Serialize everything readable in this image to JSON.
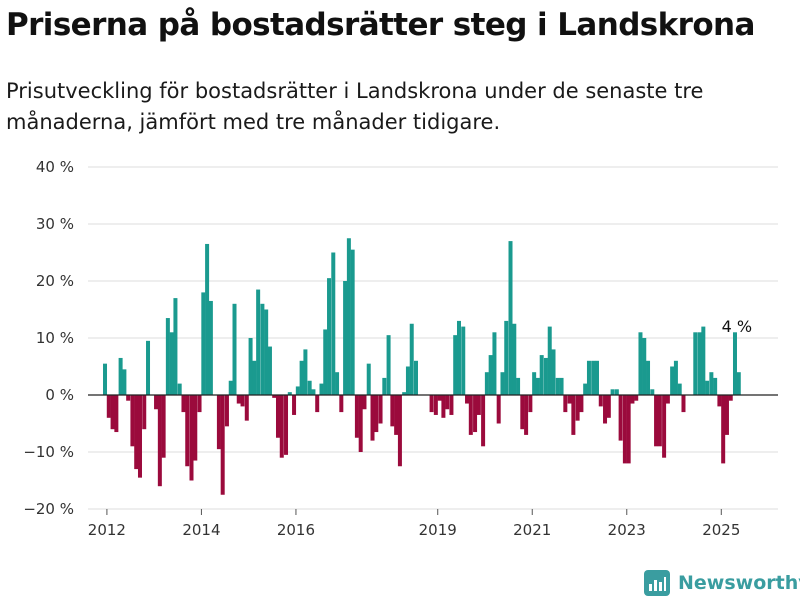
{
  "title": "Priserna på bostadsrätter steg i Landskrona",
  "subtitle": "Prisutveckling för bostadsrätter i Landskrona under de senaste tre månaderna, jämfört med tre månader tidigare.",
  "brand": "Newsworthy",
  "colors": {
    "positive": "#1a9a8f",
    "negative": "#9b0a3c",
    "grid": "#dedede",
    "zero_line": "#222222",
    "brand": "#3a9da0"
  },
  "chart_data": {
    "type": "bar",
    "ylim": [
      -20,
      40
    ],
    "y_ticks": [
      {
        "value": 40,
        "label": "40 %"
      },
      {
        "value": 30,
        "label": "30 %"
      },
      {
        "value": 20,
        "label": "20 %"
      },
      {
        "value": 10,
        "label": "10 %"
      },
      {
        "value": 0,
        "label": "0 %"
      },
      {
        "value": -10,
        "label": "−10 %"
      },
      {
        "value": -20,
        "label": "−20 %"
      }
    ],
    "x_ticks": [
      {
        "value": 2012.0,
        "label": "2012"
      },
      {
        "value": 2014.0,
        "label": "2014"
      },
      {
        "value": 2016.0,
        "label": "2016"
      },
      {
        "value": 2019.0,
        "label": "2019"
      },
      {
        "value": 2021.0,
        "label": "2021"
      },
      {
        "value": 2023.0,
        "label": "2023"
      },
      {
        "value": 2025.0,
        "label": "2025"
      }
    ],
    "xlim": [
      2011.6,
      2026.2
    ],
    "grid": true,
    "last_label": "4 %",
    "points": [
      [
        2011.96,
        5.5
      ],
      [
        2012.04,
        -4
      ],
      [
        2012.12,
        -6
      ],
      [
        2012.2,
        -6.5
      ],
      [
        2012.29,
        6.5
      ],
      [
        2012.37,
        4.5
      ],
      [
        2012.45,
        -1
      ],
      [
        2012.54,
        -9
      ],
      [
        2012.62,
        -13
      ],
      [
        2012.7,
        -14.5
      ],
      [
        2012.79,
        -6
      ],
      [
        2012.87,
        9.5
      ],
      [
        2013.04,
        -2.5
      ],
      [
        2013.12,
        -16
      ],
      [
        2013.2,
        -11
      ],
      [
        2013.29,
        13.5
      ],
      [
        2013.37,
        11
      ],
      [
        2013.45,
        17
      ],
      [
        2013.54,
        2
      ],
      [
        2013.62,
        -3
      ],
      [
        2013.7,
        -12.5
      ],
      [
        2013.79,
        -15
      ],
      [
        2013.87,
        -11.5
      ],
      [
        2013.96,
        -3
      ],
      [
        2014.04,
        18
      ],
      [
        2014.12,
        26.5
      ],
      [
        2014.2,
        16.5
      ],
      [
        2014.37,
        -9.5
      ],
      [
        2014.45,
        -17.5
      ],
      [
        2014.54,
        -5.5
      ],
      [
        2014.62,
        2.5
      ],
      [
        2014.7,
        16
      ],
      [
        2014.79,
        -1.5
      ],
      [
        2014.87,
        -2
      ],
      [
        2014.96,
        -4.5
      ],
      [
        2015.04,
        10
      ],
      [
        2015.12,
        6
      ],
      [
        2015.2,
        18.5
      ],
      [
        2015.29,
        16
      ],
      [
        2015.37,
        15
      ],
      [
        2015.45,
        8.5
      ],
      [
        2015.54,
        -0.5
      ],
      [
        2015.62,
        -7.5
      ],
      [
        2015.7,
        -11
      ],
      [
        2015.79,
        -10.5
      ],
      [
        2015.87,
        0.5
      ],
      [
        2015.96,
        -3.5
      ],
      [
        2016.04,
        1.5
      ],
      [
        2016.12,
        6
      ],
      [
        2016.2,
        8
      ],
      [
        2016.29,
        2.5
      ],
      [
        2016.37,
        1
      ],
      [
        2016.45,
        -3
      ],
      [
        2016.54,
        2
      ],
      [
        2016.62,
        11.5
      ],
      [
        2016.7,
        20.5
      ],
      [
        2016.79,
        25
      ],
      [
        2016.87,
        4
      ],
      [
        2016.96,
        -3
      ],
      [
        2017.04,
        20
      ],
      [
        2017.12,
        27.5
      ],
      [
        2017.2,
        25.5
      ],
      [
        2017.29,
        -7.5
      ],
      [
        2017.37,
        -10
      ],
      [
        2017.45,
        -2.5
      ],
      [
        2017.54,
        5.5
      ],
      [
        2017.62,
        -8
      ],
      [
        2017.7,
        -6.5
      ],
      [
        2017.79,
        -5
      ],
      [
        2017.87,
        3
      ],
      [
        2017.96,
        10.5
      ],
      [
        2018.04,
        -5.5
      ],
      [
        2018.12,
        -7
      ],
      [
        2018.2,
        -12.5
      ],
      [
        2018.29,
        0.5
      ],
      [
        2018.37,
        5
      ],
      [
        2018.45,
        12.5
      ],
      [
        2018.54,
        6
      ],
      [
        2018.87,
        -3
      ],
      [
        2018.96,
        -3.5
      ],
      [
        2019.04,
        -1
      ],
      [
        2019.12,
        -4
      ],
      [
        2019.2,
        -2.5
      ],
      [
        2019.29,
        -3.5
      ],
      [
        2019.37,
        10.5
      ],
      [
        2019.45,
        13
      ],
      [
        2019.54,
        12
      ],
      [
        2019.62,
        -1.5
      ],
      [
        2019.7,
        -7
      ],
      [
        2019.79,
        -6.5
      ],
      [
        2019.87,
        -3.5
      ],
      [
        2019.96,
        -9
      ],
      [
        2020.04,
        4
      ],
      [
        2020.12,
        7
      ],
      [
        2020.2,
        11
      ],
      [
        2020.29,
        -5
      ],
      [
        2020.37,
        4
      ],
      [
        2020.45,
        13
      ],
      [
        2020.54,
        27
      ],
      [
        2020.62,
        12.5
      ],
      [
        2020.7,
        3
      ],
      [
        2020.79,
        -6
      ],
      [
        2020.87,
        -7
      ],
      [
        2020.96,
        -3
      ],
      [
        2021.04,
        4
      ],
      [
        2021.12,
        3
      ],
      [
        2021.2,
        7
      ],
      [
        2021.29,
        6.5
      ],
      [
        2021.37,
        12
      ],
      [
        2021.45,
        8
      ],
      [
        2021.54,
        3
      ],
      [
        2021.62,
        3
      ],
      [
        2021.7,
        -3
      ],
      [
        2021.79,
        -1.5
      ],
      [
        2021.87,
        -7
      ],
      [
        2021.96,
        -4.5
      ],
      [
        2022.04,
        -3
      ],
      [
        2022.12,
        2
      ],
      [
        2022.2,
        6
      ],
      [
        2022.29,
        6
      ],
      [
        2022.37,
        6
      ],
      [
        2022.45,
        -2
      ],
      [
        2022.54,
        -5
      ],
      [
        2022.62,
        -4
      ],
      [
        2022.7,
        1
      ],
      [
        2022.79,
        1
      ],
      [
        2022.87,
        -8
      ],
      [
        2022.96,
        -12
      ],
      [
        2023.04,
        -12
      ],
      [
        2023.12,
        -1.5
      ],
      [
        2023.2,
        -1
      ],
      [
        2023.29,
        11
      ],
      [
        2023.37,
        10
      ],
      [
        2023.45,
        6
      ],
      [
        2023.54,
        1
      ],
      [
        2023.62,
        -9
      ],
      [
        2023.7,
        -9
      ],
      [
        2023.79,
        -11
      ],
      [
        2023.87,
        -1.5
      ],
      [
        2023.96,
        5
      ],
      [
        2024.04,
        6
      ],
      [
        2024.12,
        2
      ],
      [
        2024.2,
        -3
      ],
      [
        2024.45,
        11
      ],
      [
        2024.54,
        11
      ],
      [
        2024.62,
        12
      ],
      [
        2024.7,
        2.5
      ],
      [
        2024.79,
        4
      ],
      [
        2024.87,
        3
      ],
      [
        2024.96,
        -2
      ],
      [
        2025.04,
        -12
      ],
      [
        2025.12,
        -7
      ],
      [
        2025.2,
        -1
      ],
      [
        2025.29,
        11
      ],
      [
        2025.37,
        4
      ]
    ]
  }
}
